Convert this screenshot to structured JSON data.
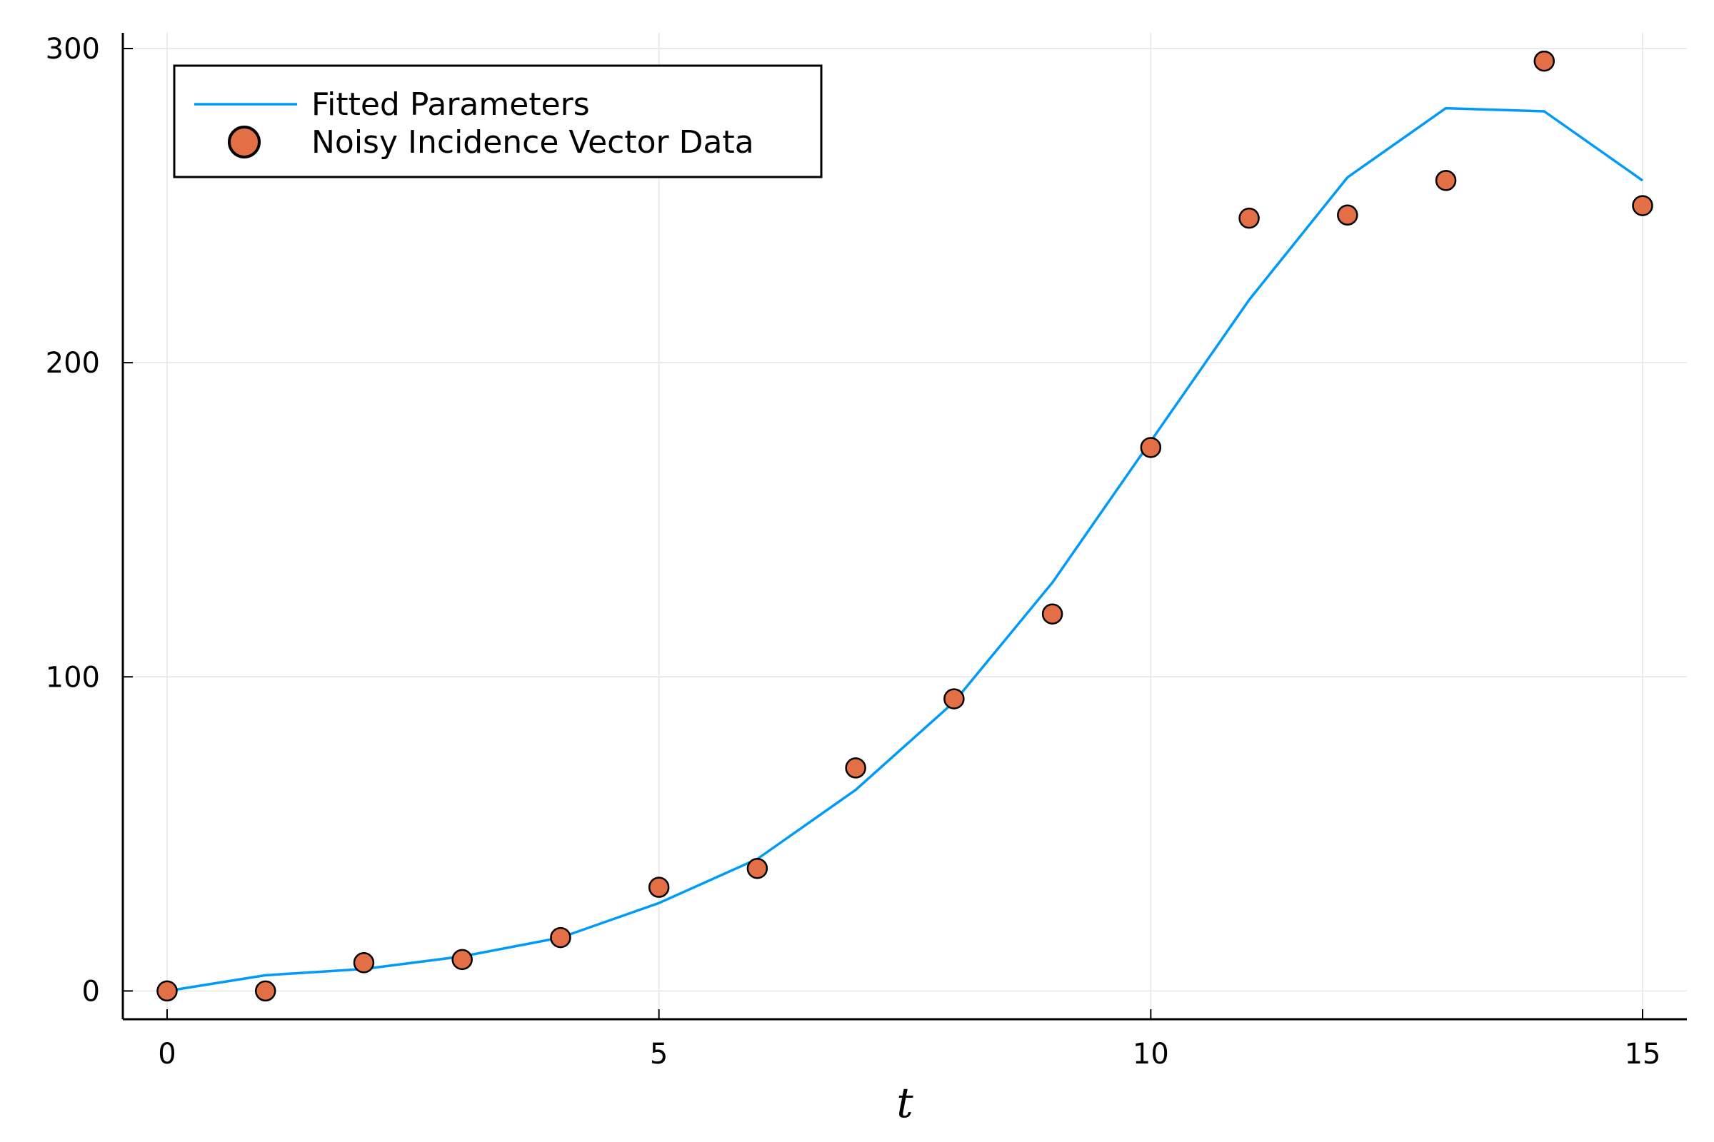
{
  "chart_data": {
    "type": "line",
    "title": "",
    "xlabel": "t",
    "ylabel": "",
    "xlim": [
      -0.45,
      15.45
    ],
    "ylim": [
      -9,
      305
    ],
    "x_ticks": [
      0,
      5,
      10,
      15
    ],
    "y_ticks": [
      0,
      100,
      200,
      300
    ],
    "grid": true,
    "legend_position": "top-left",
    "series": [
      {
        "name": "Fitted Parameters",
        "kind": "line",
        "color": "#009af9",
        "x": [
          0,
          1,
          2,
          3,
          4,
          5,
          6,
          7,
          8,
          9,
          10,
          11,
          12,
          13,
          14,
          15
        ],
        "y": [
          0,
          5,
          7,
          11,
          17,
          28,
          42,
          64,
          92,
          130,
          175,
          220,
          259,
          281,
          280,
          258
        ]
      },
      {
        "name": "Noisy Incidence Vector Data",
        "kind": "scatter",
        "color": "#e26f46",
        "x": [
          0,
          1,
          2,
          3,
          4,
          5,
          6,
          7,
          8,
          9,
          10,
          11,
          12,
          13,
          14,
          15
        ],
        "y": [
          0,
          0,
          9,
          10,
          17,
          33,
          39,
          71,
          93,
          120,
          173,
          246,
          247,
          258,
          296,
          250
        ]
      }
    ]
  }
}
